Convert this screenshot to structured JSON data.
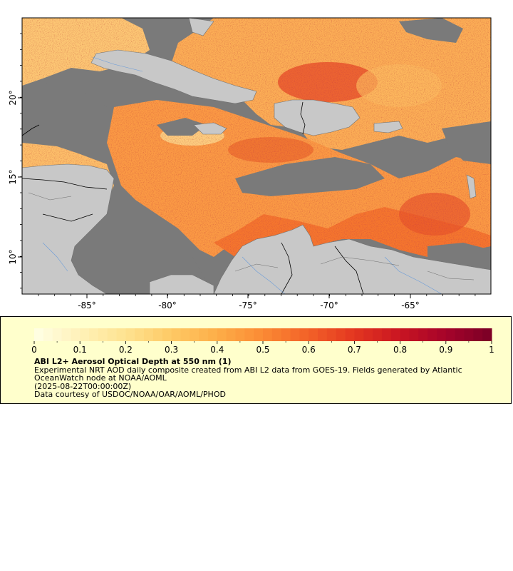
{
  "map": {
    "x_ticks": [
      "-85°",
      "-80°",
      "-75°",
      "-70°",
      "-65°"
    ],
    "y_ticks": [
      "20°",
      "15°",
      "10°"
    ],
    "colors": {
      "land": "#c8c8c8",
      "no_data": "#7a7a7a",
      "rivers": "#6b9cd8",
      "borders": "#000000",
      "coast": "#707070"
    }
  },
  "colorbar": {
    "labels": [
      "0",
      "0.1",
      "0.2",
      "0.3",
      "0.4",
      "0.5",
      "0.6",
      "0.7",
      "0.8",
      "0.9",
      "1"
    ],
    "min": 0,
    "max": 1,
    "stops": [
      "#ffffe6",
      "#fff1b8",
      "#fee390",
      "#fec965",
      "#fdae48",
      "#fb8a34",
      "#f26128",
      "#e33620",
      "#c91522",
      "#a5032a",
      "#7a0026"
    ]
  },
  "legend": {
    "title": "ABI L2+ Aerosol Optical Depth at 550 nm (1)",
    "line1": "Experimental NRT AOD daily composite created from ABI L2 data from GOES-19. Fields generated by Atlantic OceanWatch node at NOAA/AOML",
    "line2": "(2025-08-22T00:00:00Z)",
    "line3": "Data courtesy of USDOC/NOAA/OAR/AOML/PHOD"
  }
}
